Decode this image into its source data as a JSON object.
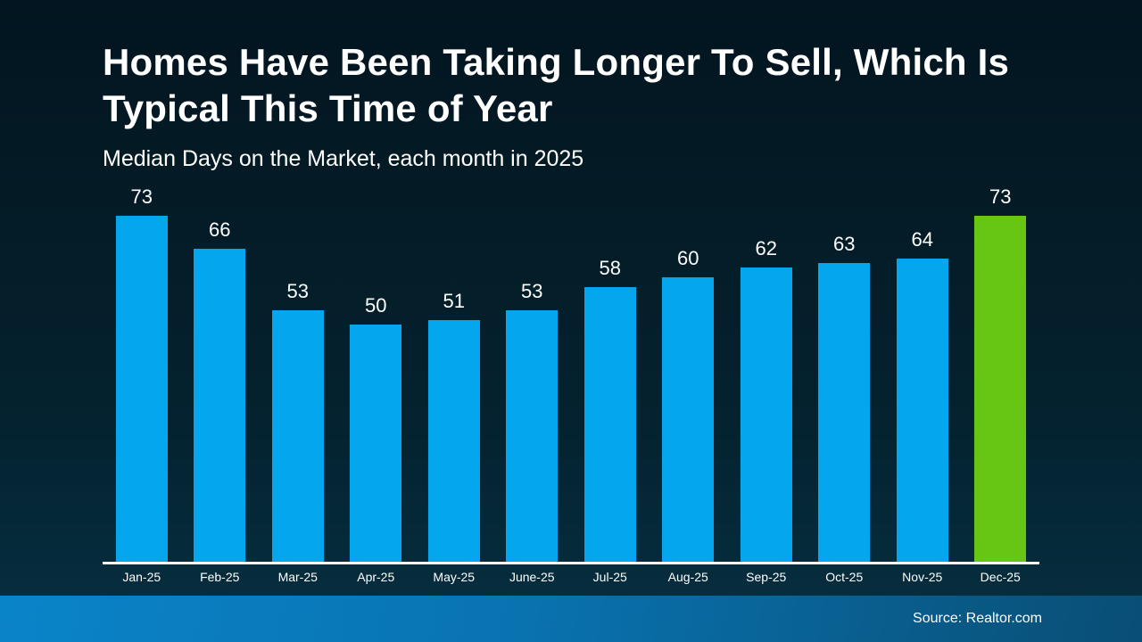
{
  "header": {
    "title_line1": "Homes Have Been Taking Longer To Sell, Which Is",
    "title_line2": "Typical This Time of Year",
    "subtitle": "Median Days on the Market, each month in 2025"
  },
  "chart_data": {
    "type": "bar",
    "title": "Homes Have Been Taking Longer To Sell, Which Is Typical This Time of Year",
    "subtitle": "Median Days on the Market, each month in 2025",
    "categories": [
      "Jan-25",
      "Feb-25",
      "Mar-25",
      "Apr-25",
      "May-25",
      "June-25",
      "Jul-25",
      "Aug-25",
      "Sep-25",
      "Oct-25",
      "Nov-25",
      "Dec-25"
    ],
    "values": [
      73,
      66,
      53,
      50,
      51,
      53,
      58,
      60,
      62,
      63,
      64,
      73
    ],
    "ylim": [
      0,
      80
    ],
    "xlabel": "",
    "ylabel": "Median Days on the Market",
    "grid": false,
    "legend": false,
    "data_labels": true,
    "bar_color": "#04a7ee",
    "highlight_color": "#66c613",
    "highlight_index": 11
  },
  "footer": {
    "source": "Source: Realtor.com"
  },
  "colors": {
    "background_top": "#021520",
    "background_bottom": "#063042",
    "bar_blue": "#04a7ee",
    "bar_green": "#66c613",
    "axis_line": "#ffffff",
    "text": "#ffffff",
    "footer_left": "#0a84c9",
    "footer_right": "#094e74"
  }
}
